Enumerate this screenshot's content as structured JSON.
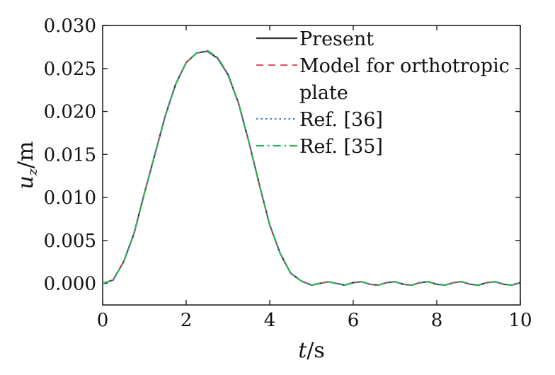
{
  "chart_data": {
    "type": "line",
    "title": "",
    "xlabel": "t/s",
    "ylabel": "u_z/m",
    "xlim": [
      0,
      10
    ],
    "ylim": [
      -0.0025,
      0.03
    ],
    "xticks": [
      0,
      2,
      4,
      6,
      8,
      10
    ],
    "xtick_labels": [
      "0",
      "2",
      "4",
      "6",
      "8",
      "10"
    ],
    "yticks": [
      0,
      0.005,
      0.01,
      0.015,
      0.02,
      0.025,
      0.03
    ],
    "ytick_labels": [
      "0.000",
      "0.005",
      "0.010",
      "0.015",
      "0.020",
      "0.025",
      "0.030"
    ],
    "grid": false,
    "legend_position": "top-right",
    "x": [
      0,
      0.25,
      0.5,
      0.75,
      1.0,
      1.25,
      1.5,
      1.75,
      2.0,
      2.25,
      2.5,
      2.75,
      3.0,
      3.25,
      3.5,
      3.75,
      4.0,
      4.25,
      4.5,
      4.75,
      5.0,
      5.2,
      5.4,
      5.6,
      5.8,
      6.0,
      6.2,
      6.4,
      6.6,
      6.8,
      7.0,
      7.2,
      7.4,
      7.6,
      7.8,
      8.0,
      8.2,
      8.4,
      8.6,
      8.8,
      9.0,
      9.2,
      9.4,
      9.6,
      9.8,
      10.0
    ],
    "series": [
      {
        "name": "Present",
        "color": "#333333",
        "dash": "solid",
        "values": [
          0,
          0.0004,
          0.0025,
          0.0058,
          0.0105,
          0.015,
          0.0195,
          0.0232,
          0.0257,
          0.0268,
          0.027,
          0.0262,
          0.0243,
          0.021,
          0.0165,
          0.0115,
          0.0068,
          0.0035,
          0.0012,
          0.0003,
          -0.0002,
          0.0,
          0.0002,
          0.0,
          -0.0002,
          0.0001,
          0.0002,
          -0.0001,
          -0.0002,
          0.0001,
          0.0002,
          -0.0001,
          -0.0002,
          0.0001,
          0.0002,
          -0.0001,
          -0.0002,
          0.0001,
          0.0002,
          -0.0001,
          -0.0002,
          0.0001,
          0.0002,
          -0.0001,
          -0.0002,
          0.0001
        ]
      },
      {
        "name": "Model for orthotropic plate",
        "color": "#d9364a",
        "dash": "dashed",
        "values": [
          0,
          0.0004,
          0.0025,
          0.0058,
          0.0105,
          0.015,
          0.0195,
          0.0232,
          0.0257,
          0.0268,
          0.027,
          0.0262,
          0.0243,
          0.021,
          0.0165,
          0.0115,
          0.0068,
          0.0035,
          0.0012,
          0.0003,
          -0.0002,
          0.0,
          0.0002,
          0.0,
          -0.0002,
          0.0001,
          0.0002,
          -0.0001,
          -0.0002,
          0.0001,
          0.0002,
          -0.0001,
          -0.0002,
          0.0001,
          0.0002,
          -0.0001,
          -0.0002,
          0.0001,
          0.0002,
          -0.0001,
          -0.0002,
          0.0001,
          0.0002,
          -0.0001,
          -0.0002,
          0.0001
        ]
      },
      {
        "name": "Ref. [36]",
        "color": "#3c7fc4",
        "dash": "dotted",
        "values": [
          0,
          0.0004,
          0.0025,
          0.0058,
          0.0105,
          0.015,
          0.0195,
          0.0232,
          0.0257,
          0.0268,
          0.027,
          0.0262,
          0.0243,
          0.021,
          0.0165,
          0.0115,
          0.0068,
          0.0035,
          0.0012,
          0.0003,
          -0.0002,
          0.0,
          0.0002,
          0.0,
          -0.0002,
          0.0001,
          0.0002,
          -0.0001,
          -0.0002,
          0.0001,
          0.0002,
          -0.0001,
          -0.0002,
          0.0001,
          0.0002,
          -0.0001,
          -0.0002,
          0.0001,
          0.0002,
          -0.0001,
          -0.0002,
          0.0001,
          0.0002,
          -0.0001,
          -0.0002,
          0.0001
        ]
      },
      {
        "name": "Ref. [35]",
        "color": "#2fb35a",
        "dash": "dashdot",
        "values": [
          0,
          0.0004,
          0.0025,
          0.0058,
          0.0105,
          0.015,
          0.0195,
          0.0232,
          0.0257,
          0.0268,
          0.0271,
          0.0263,
          0.0244,
          0.021,
          0.0165,
          0.0115,
          0.0068,
          0.0035,
          0.0012,
          0.0003,
          -0.0002,
          0.0,
          0.0002,
          0.0,
          -0.0002,
          0.0001,
          0.0002,
          -0.0001,
          -0.0002,
          0.0001,
          0.0002,
          -0.0001,
          -0.0002,
          0.0001,
          0.0002,
          -0.0001,
          -0.0002,
          0.0001,
          0.0002,
          -0.0001,
          -0.0002,
          0.0001,
          0.0002,
          -0.0001,
          -0.0002,
          0.0001
        ]
      }
    ]
  }
}
